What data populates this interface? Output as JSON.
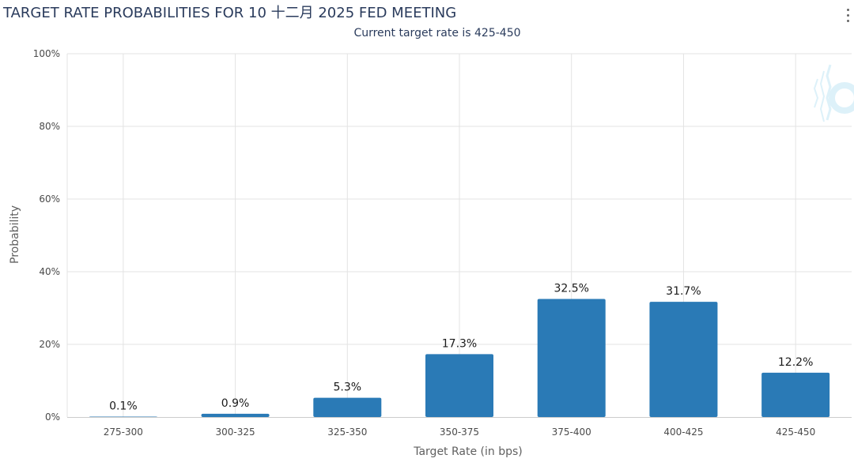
{
  "colors": {
    "bar": "#2a7ab6",
    "grid": "#e3e3e3",
    "axis_text": "#4a4a4a",
    "title": "#2a3b5c"
  },
  "icons": {
    "menu": "vertical-ellipsis-icon",
    "watermark": "logo-watermark"
  },
  "chart_data": {
    "type": "bar",
    "title": "TARGET RATE PROBABILITIES FOR 10 十二月 2025 FED MEETING",
    "subtitle": "Current target rate is 425-450",
    "xlabel": "Target Rate (in bps)",
    "ylabel": "Probability",
    "categories": [
      "275-300",
      "300-325",
      "325-350",
      "350-375",
      "375-400",
      "400-425",
      "425-450"
    ],
    "values": [
      0.1,
      0.9,
      5.3,
      17.3,
      32.5,
      31.7,
      12.2
    ],
    "data_labels": [
      "0.1%",
      "0.9%",
      "5.3%",
      "17.3%",
      "32.5%",
      "31.7%",
      "12.2%"
    ],
    "ylim": [
      0,
      100
    ],
    "yticks": [
      0,
      20,
      40,
      60,
      80,
      100
    ],
    "ytick_labels": [
      "0%",
      "20%",
      "40%",
      "60%",
      "80%",
      "100%"
    ],
    "grid": true,
    "legend": "none"
  }
}
